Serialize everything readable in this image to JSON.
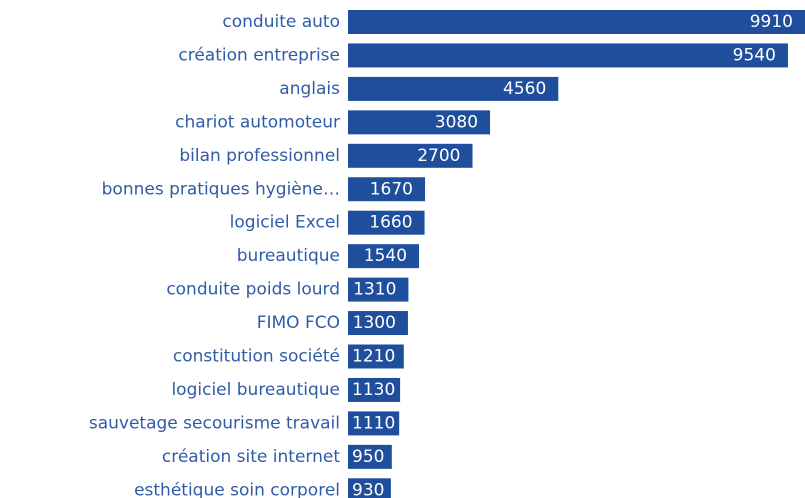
{
  "chart_data": {
    "type": "bar",
    "orientation": "horizontal",
    "categories": [
      "conduite auto",
      "création entreprise",
      "anglais",
      "chariot automoteur",
      "bilan professionnel",
      "bonnes pratiques hygiène…",
      "logiciel Excel",
      "bureautique",
      "conduite poids lourd",
      "FIMO FCO",
      "constitution société",
      "logiciel bureautique",
      "sauvetage secourisme travail",
      "création site internet",
      "esthétique soin corporel"
    ],
    "values": [
      9910,
      9540,
      4560,
      3080,
      2700,
      1670,
      1660,
      1540,
      1310,
      1300,
      1210,
      1130,
      1110,
      950,
      930
    ],
    "value_labels": [
      "9910",
      "9540",
      "4560",
      "3080",
      "2700",
      "1670",
      "1660",
      "1540",
      "1310",
      "1300",
      "1210",
      "1130",
      "1110",
      "950",
      "930"
    ],
    "color": "#1f4e9c"
  }
}
